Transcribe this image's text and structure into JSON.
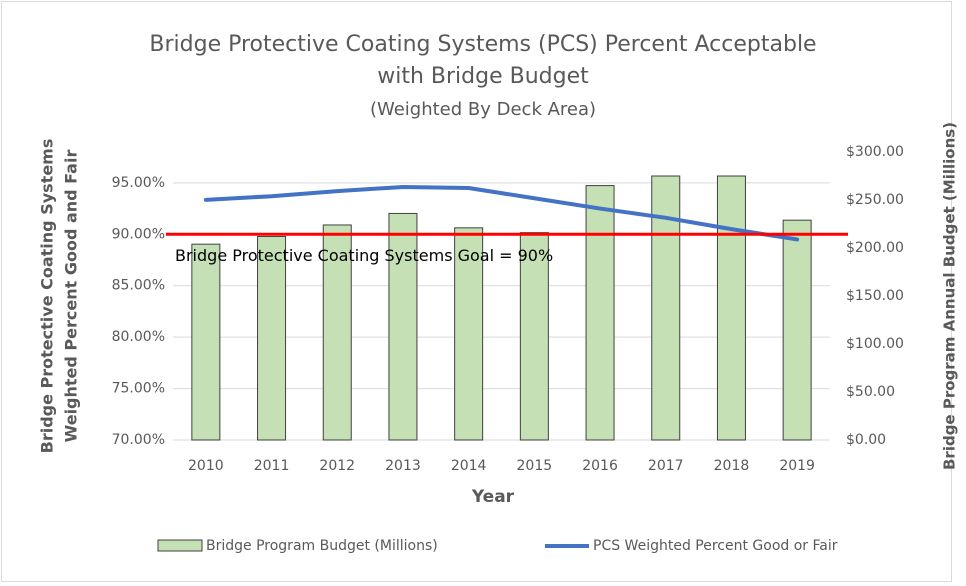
{
  "chart_data": {
    "type": "combo",
    "title": [
      "Bridge Protective Coating Systems (PCS) Percent Acceptable",
      "with Bridge Budget"
    ],
    "subtitle": "(Weighted By Deck Area)",
    "xlabel": "Year",
    "ylabel": [
      "Bridge Protective Coating Systems",
      "Weighted Percent Good and Fair"
    ],
    "y2label": "Bridge Program Annual Budget (Millions)",
    "categories": [
      "2010",
      "2011",
      "2012",
      "2013",
      "2014",
      "2015",
      "2016",
      "2017",
      "2018",
      "2019"
    ],
    "series": [
      {
        "name": "Bridge Program Budget (Millions)",
        "type": "bar",
        "axis": "y2",
        "color": "#c5e0b4",
        "values": [
          204,
          212,
          224,
          236,
          221,
          216,
          265,
          275,
          275,
          229
        ]
      },
      {
        "name": "PCS Weighted Percent Good or Fair",
        "type": "line",
        "axis": "y",
        "color": "#4472c4",
        "values": [
          93.35,
          93.7,
          94.2,
          94.6,
          94.5,
          93.5,
          92.5,
          91.6,
          90.5,
          89.5
        ]
      }
    ],
    "goal_line": {
      "value": 90,
      "color": "#ff0000",
      "label": "Bridge Protective Coating Systems Goal = 90%"
    },
    "ylim": [
      70,
      98
    ],
    "yticks": [
      {
        "value": 70,
        "label": "70.00%"
      },
      {
        "value": 75,
        "label": "75.00%"
      },
      {
        "value": 80,
        "label": "80.00%"
      },
      {
        "value": 85,
        "label": "85.00%"
      },
      {
        "value": 90,
        "label": "90.00%"
      },
      {
        "value": 95,
        "label": "95.00%"
      }
    ],
    "y2lim": [
      0,
      300
    ],
    "y2ticks": [
      {
        "value": 0,
        "label": "$0.00"
      },
      {
        "value": 50,
        "label": "$50.00"
      },
      {
        "value": 100,
        "label": "$100.00"
      },
      {
        "value": 150,
        "label": "$150.00"
      },
      {
        "value": 200,
        "label": "$200.00"
      },
      {
        "value": 250,
        "label": "$250.00"
      },
      {
        "value": 300,
        "label": "$300.00"
      }
    ],
    "grid": true
  }
}
